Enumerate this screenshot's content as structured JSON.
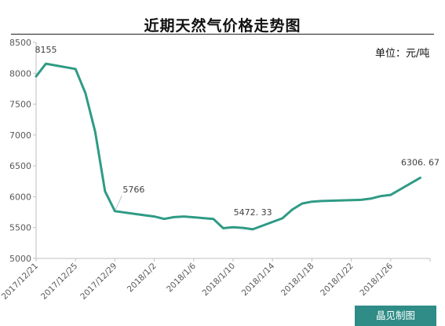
{
  "chart_data": {
    "type": "line",
    "title": "近期天然气价格走势图",
    "unit_label": "单位：元/吨",
    "ylim": [
      5000,
      8500
    ],
    "yticks": [
      5000,
      5500,
      6000,
      6500,
      7000,
      7500,
      8000,
      8500
    ],
    "xlim": [
      "2017/12/21",
      "2018/1/30"
    ],
    "xtick_labels": [
      "2017/12/21",
      "2017/12/25",
      "2017/12/29",
      "2018/1/2",
      "2018/1/6",
      "2018/1/10",
      "2018/1/14",
      "2018/1/18",
      "2018/1/22",
      "2018/1/26"
    ],
    "series": [
      {
        "color": "#2f9b86",
        "points": [
          {
            "x": "2017/12/21",
            "y": 7950
          },
          {
            "x": "2017/12/22",
            "y": 8155
          },
          {
            "x": "2017/12/25",
            "y": 8070
          },
          {
            "x": "2017/12/26",
            "y": 7680
          },
          {
            "x": "2017/12/27",
            "y": 7050
          },
          {
            "x": "2017/12/28",
            "y": 6090
          },
          {
            "x": "2017/12/29",
            "y": 5766
          },
          {
            "x": "2018/1/1",
            "y": 5700
          },
          {
            "x": "2018/1/2",
            "y": 5680
          },
          {
            "x": "2018/1/3",
            "y": 5640
          },
          {
            "x": "2018/1/4",
            "y": 5670
          },
          {
            "x": "2018/1/5",
            "y": 5680
          },
          {
            "x": "2018/1/8",
            "y": 5640
          },
          {
            "x": "2018/1/9",
            "y": 5490
          },
          {
            "x": "2018/1/10",
            "y": 5505
          },
          {
            "x": "2018/1/11",
            "y": 5495
          },
          {
            "x": "2018/1/12",
            "y": 5472.33
          },
          {
            "x": "2018/1/15",
            "y": 5650
          },
          {
            "x": "2018/1/16",
            "y": 5790
          },
          {
            "x": "2018/1/17",
            "y": 5890
          },
          {
            "x": "2018/1/18",
            "y": 5920
          },
          {
            "x": "2018/1/19",
            "y": 5930
          },
          {
            "x": "2018/1/22",
            "y": 5945
          },
          {
            "x": "2018/1/23",
            "y": 5950
          },
          {
            "x": "2018/1/24",
            "y": 5970
          },
          {
            "x": "2018/1/25",
            "y": 6010
          },
          {
            "x": "2018/1/26",
            "y": 6030
          },
          {
            "x": "2018/1/29",
            "y": 6306.67
          }
        ]
      }
    ],
    "annotations": [
      {
        "x": "2017/12/22",
        "y": 8155,
        "text": "8155"
      },
      {
        "x": "2017/12/29",
        "y": 5766,
        "text": "5766"
      },
      {
        "x": "2018/1/12",
        "y": 5472.33,
        "text": "5472. 33"
      },
      {
        "x": "2018/1/29",
        "y": 6306.67,
        "text": "6306. 67"
      }
    ],
    "grid": false,
    "legend": "none"
  },
  "footer": {
    "source_label": "晶见制图"
  },
  "colors": {
    "line": "#2f9b86",
    "badge": "#2f8c86",
    "axis": "#bfbfbf",
    "title_rule": "#222222"
  }
}
